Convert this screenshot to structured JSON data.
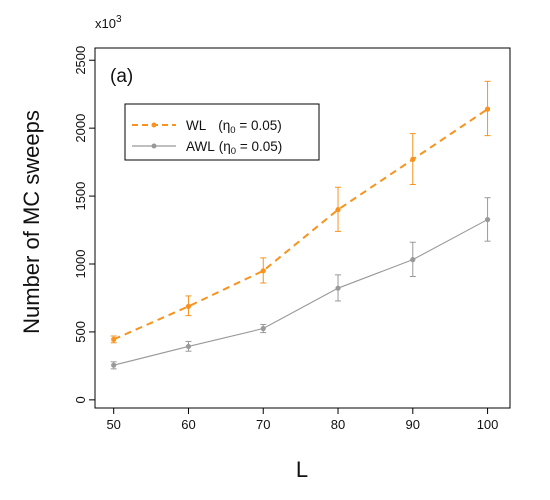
{
  "chart_data": {
    "type": "line",
    "panel_label": "(a)",
    "multiplier": {
      "base": "x10",
      "exp": "3"
    },
    "xlabel": "L",
    "ylabel": "Number of MC sweeps",
    "x": [
      50,
      60,
      70,
      80,
      90,
      100
    ],
    "xlim": [
      47.5,
      103
    ],
    "ylim": [
      -60,
      2590
    ],
    "xticks": [
      50,
      60,
      70,
      80,
      90,
      100
    ],
    "yticks": [
      0,
      500,
      1000,
      1500,
      2000,
      2500
    ],
    "grid": false,
    "legend_position": "top-left",
    "series": [
      {
        "name": "WL",
        "label_suffix": "(η",
        "label_sub": "0",
        "label_rest": " = 0.05)",
        "color": "#f7931e",
        "line_style": "dashed",
        "values": [
          445,
          688,
          950,
          1400,
          1770,
          2140
        ],
        "err_low": [
          420,
          620,
          860,
          1240,
          1585,
          1945
        ],
        "err_high": [
          470,
          765,
          1045,
          1565,
          1960,
          2345
        ]
      },
      {
        "name": "AWL",
        "label_suffix": "(η",
        "label_sub": "0",
        "label_rest": " = 0.05)",
        "color": "#999999",
        "line_style": "solid",
        "values": [
          255,
          393,
          525,
          822,
          1032,
          1327
        ],
        "err_low": [
          228,
          358,
          495,
          728,
          908,
          1168
        ],
        "err_high": [
          280,
          430,
          555,
          920,
          1160,
          1488
        ]
      }
    ]
  }
}
